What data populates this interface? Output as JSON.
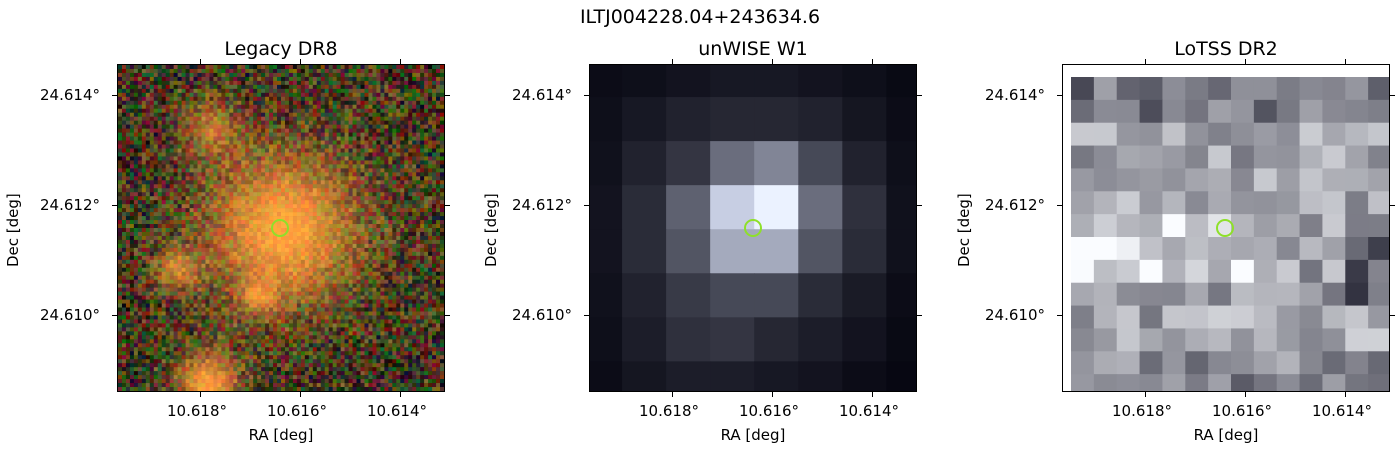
{
  "figure": {
    "title": "ILTJ004228.04+243634.6"
  },
  "panels": [
    {
      "title": "Legacy DR8",
      "ylabel": "Dec [deg]",
      "xlabel": "RA [deg]",
      "yticks": [
        "24.614°",
        "24.612°",
        "24.610°"
      ],
      "xticks": [
        "10.618°",
        "10.616°",
        "10.614°"
      ],
      "image": "optical-rgb-noise-cutout"
    },
    {
      "title": "unWISE W1",
      "ylabel": "Dec [deg]",
      "xlabel": "RA [deg]",
      "yticks": [
        "24.614°",
        "24.612°",
        "24.610°"
      ],
      "xticks": [
        "10.618°",
        "10.616°",
        "10.614°"
      ],
      "image": "infrared-grayscale-pixel-cutout"
    },
    {
      "title": "LoTSS DR2",
      "ylabel": "Dec [deg]",
      "xlabel": "RA [deg]",
      "yticks": [
        "24.614°",
        "24.612°",
        "24.610°"
      ],
      "xticks": [
        "10.618°",
        "10.616°",
        "10.614°"
      ],
      "image": "radio-bluegray-pixel-cutout"
    }
  ],
  "colors": {
    "marker": "#8ee02a",
    "legacy_core": "#f39a35",
    "wise_bright": "#ffffff",
    "lotss_dark": "#1c1b2b"
  }
}
